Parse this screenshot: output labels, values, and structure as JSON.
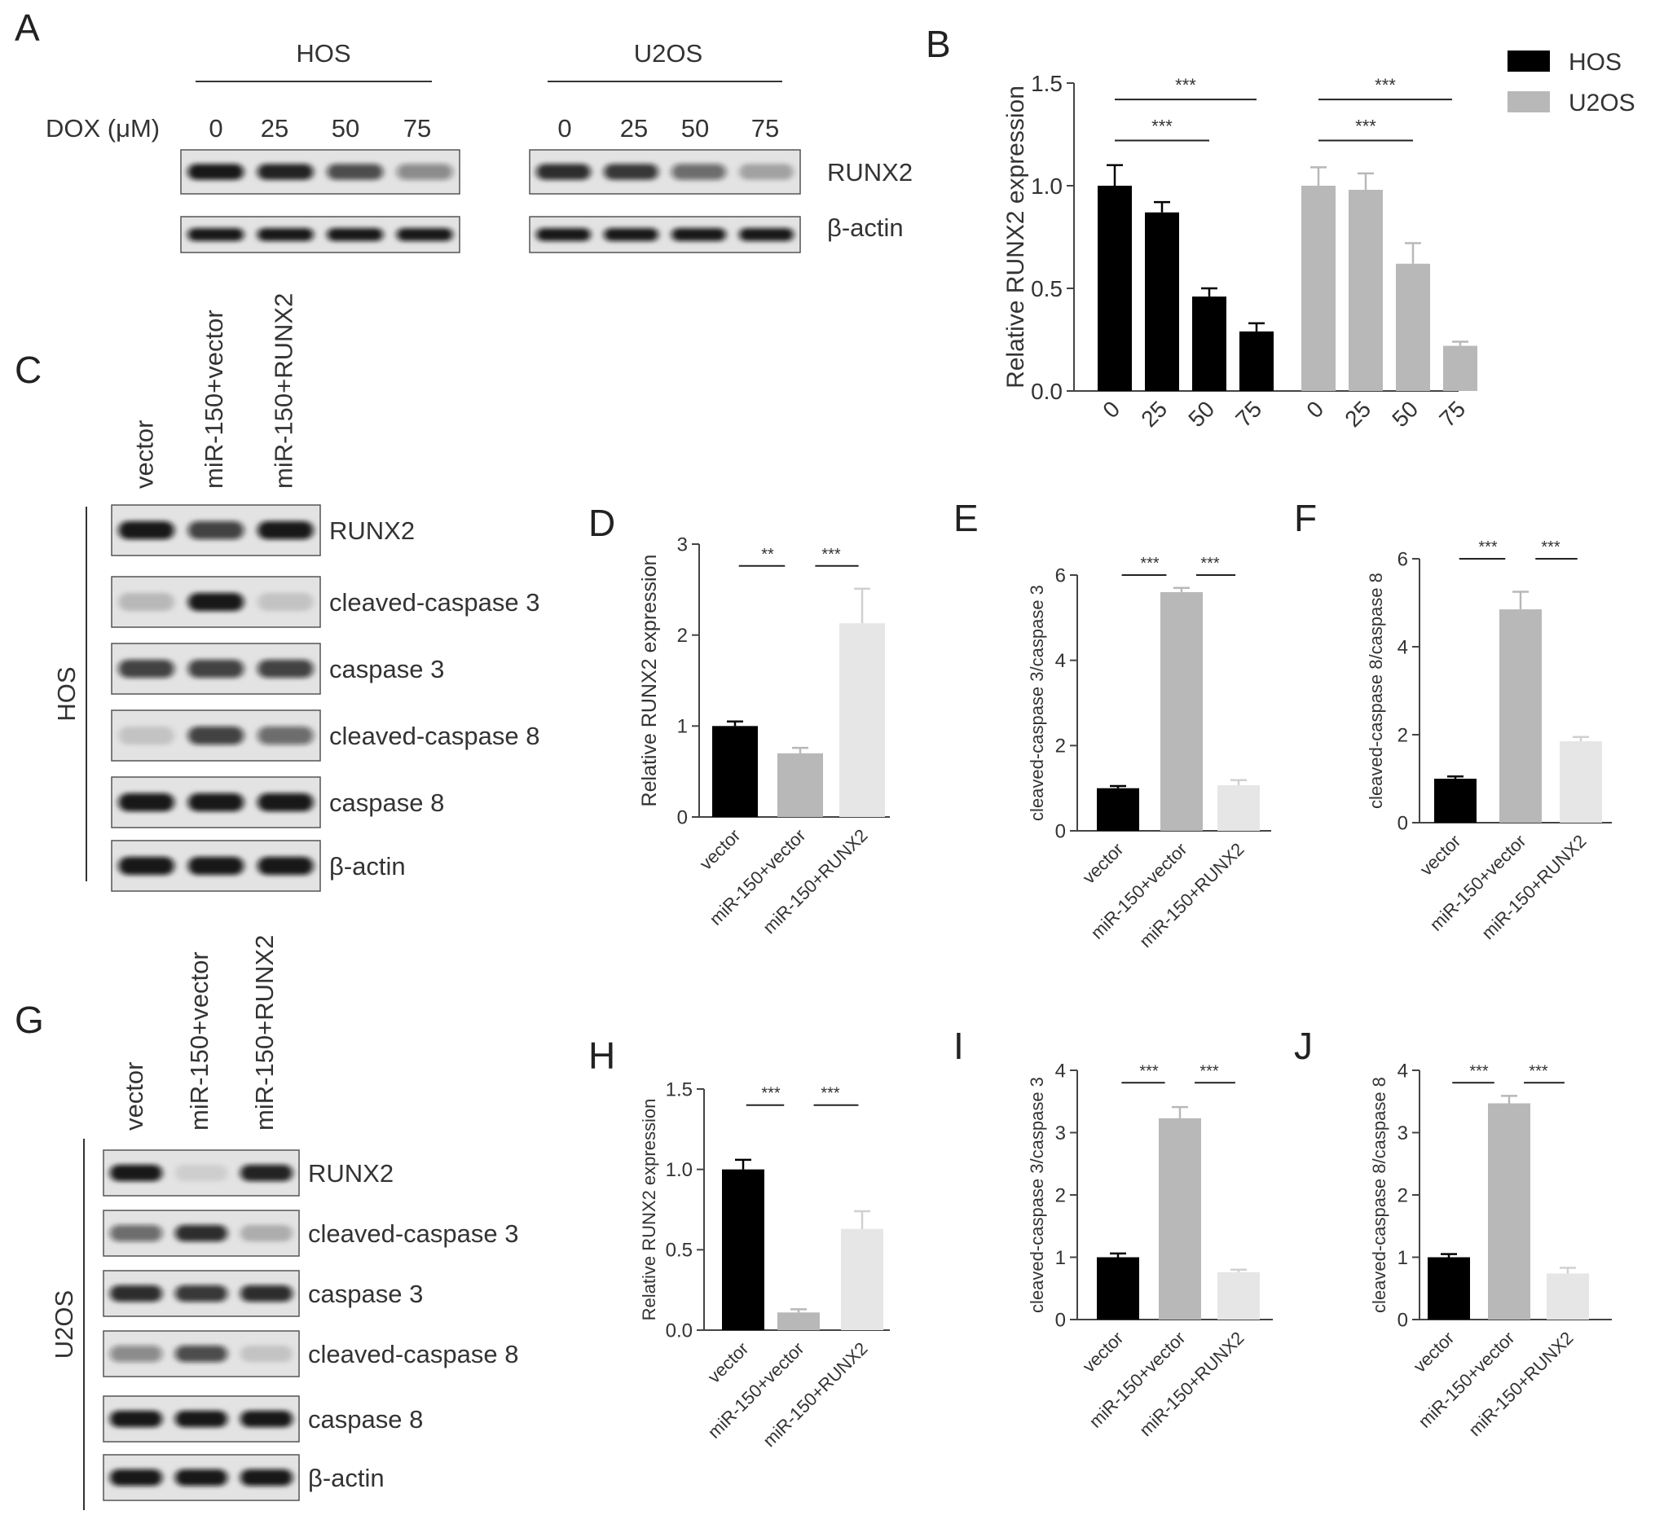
{
  "panel_letters": [
    "A",
    "B",
    "C",
    "D",
    "E",
    "F",
    "G",
    "H",
    "I",
    "J"
  ],
  "panel_A": {
    "dox_label": "DOX (μM)",
    "cell_lines": [
      "HOS",
      "U2OS"
    ],
    "doses": [
      "0",
      "25",
      "50",
      "75"
    ],
    "bands": [
      "RUNX2",
      "β-actin"
    ],
    "band_intensity": {
      "HOS_RUNX2": [
        1.0,
        0.95,
        0.75,
        0.45
      ],
      "HOS_actin": [
        1.0,
        1.0,
        1.0,
        1.0
      ],
      "U2OS_RUNX2": [
        0.9,
        0.85,
        0.6,
        0.3
      ],
      "U2OS_actin": [
        1.0,
        1.0,
        1.0,
        1.0
      ]
    }
  },
  "panel_C": {
    "cell_line": "HOS",
    "lanes": [
      "vector",
      "miR-150+vector",
      "miR-150+RUNX2"
    ],
    "bands": [
      "RUNX2",
      "cleaved-caspase 3",
      "caspase 3",
      "cleaved-caspase 8",
      "caspase 8",
      "β-actin"
    ],
    "band_intensity": [
      [
        1.0,
        0.8,
        1.0
      ],
      [
        0.2,
        1.0,
        0.15
      ],
      [
        0.8,
        0.8,
        0.8
      ],
      [
        0.15,
        0.8,
        0.6
      ],
      [
        1.0,
        1.0,
        1.0
      ],
      [
        1.0,
        1.0,
        1.0
      ]
    ]
  },
  "panel_G": {
    "cell_line": "U2OS",
    "lanes": [
      "vector",
      "miR-150+vector",
      "miR-150+RUNX2"
    ],
    "bands": [
      "RUNX2",
      "cleaved-caspase 3",
      "caspase 3",
      "cleaved-caspase 8",
      "caspase 8",
      "β-actin"
    ],
    "band_intensity": [
      [
        1.0,
        0.1,
        0.95
      ],
      [
        0.6,
        0.9,
        0.25
      ],
      [
        0.9,
        0.85,
        0.9
      ],
      [
        0.45,
        0.75,
        0.15
      ],
      [
        1.0,
        1.0,
        1.0
      ],
      [
        1.0,
        1.0,
        1.0
      ]
    ]
  },
  "colors": {
    "HOS": "#000000",
    "U2OS": "#b8b8b8",
    "vector": "#000000",
    "miR150_vector": "#b8b8b8",
    "miR150_RUNX2": "#e6e6e6",
    "axis": "#444444"
  },
  "chart_data": [
    {
      "panel": "B",
      "type": "bar",
      "groups": [
        "HOS",
        "U2OS"
      ],
      "categories": [
        "0",
        "25",
        "50",
        "75"
      ],
      "series": [
        {
          "name": "HOS",
          "values": [
            1.0,
            0.87,
            0.46,
            0.29
          ],
          "errors": [
            0.1,
            0.05,
            0.04,
            0.04
          ]
        },
        {
          "name": "U2OS",
          "values": [
            1.0,
            0.98,
            0.62,
            0.22
          ],
          "errors": [
            0.09,
            0.08,
            0.1,
            0.02
          ]
        }
      ],
      "ylabel": "Relative RUNX2 expression",
      "ylim": [
        0,
        1.5
      ],
      "yticks": [
        "0.0",
        "0.5",
        "1.0",
        "1.5"
      ],
      "legend": "top-right",
      "significance": [
        "***",
        "***",
        "***",
        "***"
      ]
    },
    {
      "panel": "D",
      "type": "bar",
      "categories": [
        "vector",
        "miR-150+vector",
        "miR-150+RUNX2"
      ],
      "values": [
        1.0,
        0.7,
        2.13
      ],
      "errors": [
        0.05,
        0.06,
        0.38
      ],
      "ylabel": "Relative RUNX2 expression",
      "ylim": [
        0,
        3
      ],
      "yticks": [
        "0",
        "1",
        "2",
        "3"
      ],
      "significance": [
        "**",
        "***"
      ]
    },
    {
      "panel": "E",
      "type": "bar",
      "categories": [
        "vector",
        "miR-150+vector",
        "miR-150+RUNX2"
      ],
      "values": [
        1.0,
        5.6,
        1.07
      ],
      "errors": [
        0.05,
        0.1,
        0.12
      ],
      "ylabel": "cleaved-caspase 3/caspase 3",
      "ylim": [
        0,
        6
      ],
      "yticks": [
        "0",
        "2",
        "4",
        "6"
      ],
      "significance": [
        "***",
        "***"
      ]
    },
    {
      "panel": "F",
      "type": "bar",
      "categories": [
        "vector",
        "miR-150+vector",
        "miR-150+RUNX2"
      ],
      "values": [
        1.0,
        4.85,
        1.85
      ],
      "errors": [
        0.05,
        0.4,
        0.1
      ],
      "ylabel": "cleaved-caspase 8/caspase 8",
      "ylim": [
        0,
        6
      ],
      "yticks": [
        "0",
        "2",
        "4",
        "6"
      ],
      "significance": [
        "***",
        "***"
      ]
    },
    {
      "panel": "H",
      "type": "bar",
      "categories": [
        "vector",
        "miR-150+vector",
        "miR-150+RUNX2"
      ],
      "values": [
        1.0,
        0.11,
        0.63
      ],
      "errors": [
        0.06,
        0.02,
        0.11
      ],
      "ylabel": "Relative RUNX2 expression",
      "ylim": [
        0,
        1.5
      ],
      "yticks": [
        "0.0",
        "0.5",
        "1.0",
        "1.5"
      ],
      "significance": [
        "***",
        "***"
      ]
    },
    {
      "panel": "I",
      "type": "bar",
      "categories": [
        "vector",
        "miR-150+vector",
        "miR-150+RUNX2"
      ],
      "values": [
        1.0,
        3.23,
        0.76
      ],
      "errors": [
        0.06,
        0.18,
        0.04
      ],
      "ylabel": "cleaved-caspase 3/caspase 3",
      "ylim": [
        0,
        4
      ],
      "yticks": [
        "0",
        "1",
        "2",
        "3",
        "4"
      ],
      "significance": [
        "***",
        "***"
      ]
    },
    {
      "panel": "J",
      "type": "bar",
      "categories": [
        "vector",
        "miR-150+vector",
        "miR-150+RUNX2"
      ],
      "values": [
        1.0,
        3.47,
        0.74
      ],
      "errors": [
        0.05,
        0.12,
        0.09
      ],
      "ylabel": "cleaved-caspase 8/caspase 8",
      "ylim": [
        0,
        4
      ],
      "yticks": [
        "0",
        "1",
        "2",
        "3",
        "4"
      ],
      "significance": [
        "***",
        "***"
      ]
    }
  ]
}
